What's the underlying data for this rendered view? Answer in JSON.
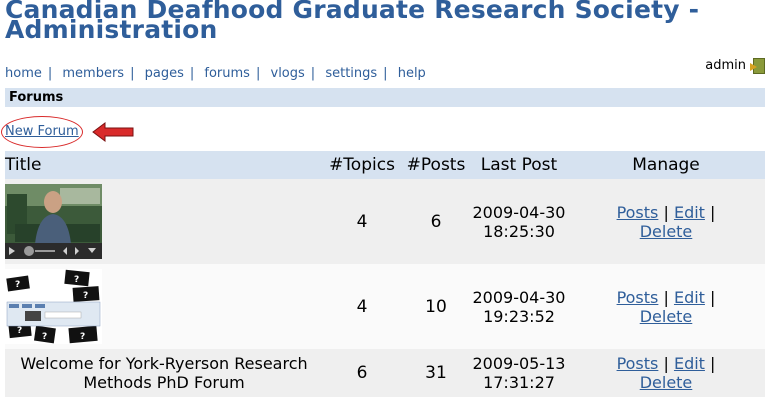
{
  "site": {
    "title": "Canadian Deafhood Graduate Research Society - Administration"
  },
  "nav": {
    "items": [
      "home",
      "members",
      "pages",
      "forums",
      "vlogs",
      "settings",
      "help"
    ]
  },
  "user": {
    "name": "admin",
    "icon": "logout-door-icon"
  },
  "section": {
    "title": "Forums"
  },
  "actions": {
    "new_forum": "New Forum"
  },
  "annotation": {
    "circle_color": "#d92b2b",
    "arrow_color": "#d92b2b"
  },
  "table": {
    "headers": {
      "title": "Title",
      "topics": "#Topics",
      "posts": "#Posts",
      "last_post": "Last Post",
      "manage": "Manage"
    },
    "rows": [
      {
        "title": "",
        "thumbnail": "video-thumbnail",
        "topics": "4",
        "posts": "6",
        "last_post_date": "2009-04-30",
        "last_post_time": "18:25:30",
        "actions": [
          "Posts",
          "Edit",
          "Delete"
        ]
      },
      {
        "title": "",
        "thumbnail": "question-cards-thumbnail",
        "topics": "4",
        "posts": "10",
        "last_post_date": "2009-04-30",
        "last_post_time": "19:23:52",
        "actions": [
          "Posts",
          "Edit",
          "Delete"
        ]
      },
      {
        "title": "Welcome for York-Ryerson Research Methods PhD Forum",
        "thumbnail": "",
        "topics": "6",
        "posts": "31",
        "last_post_date": "2009-05-13",
        "last_post_time": "17:31:27",
        "actions": [
          "Posts",
          "Edit",
          "Delete"
        ]
      }
    ]
  },
  "colors": {
    "brand": "#2f5e9a",
    "header_bg": "#d6e2f0",
    "row_alt": "#efefef"
  }
}
